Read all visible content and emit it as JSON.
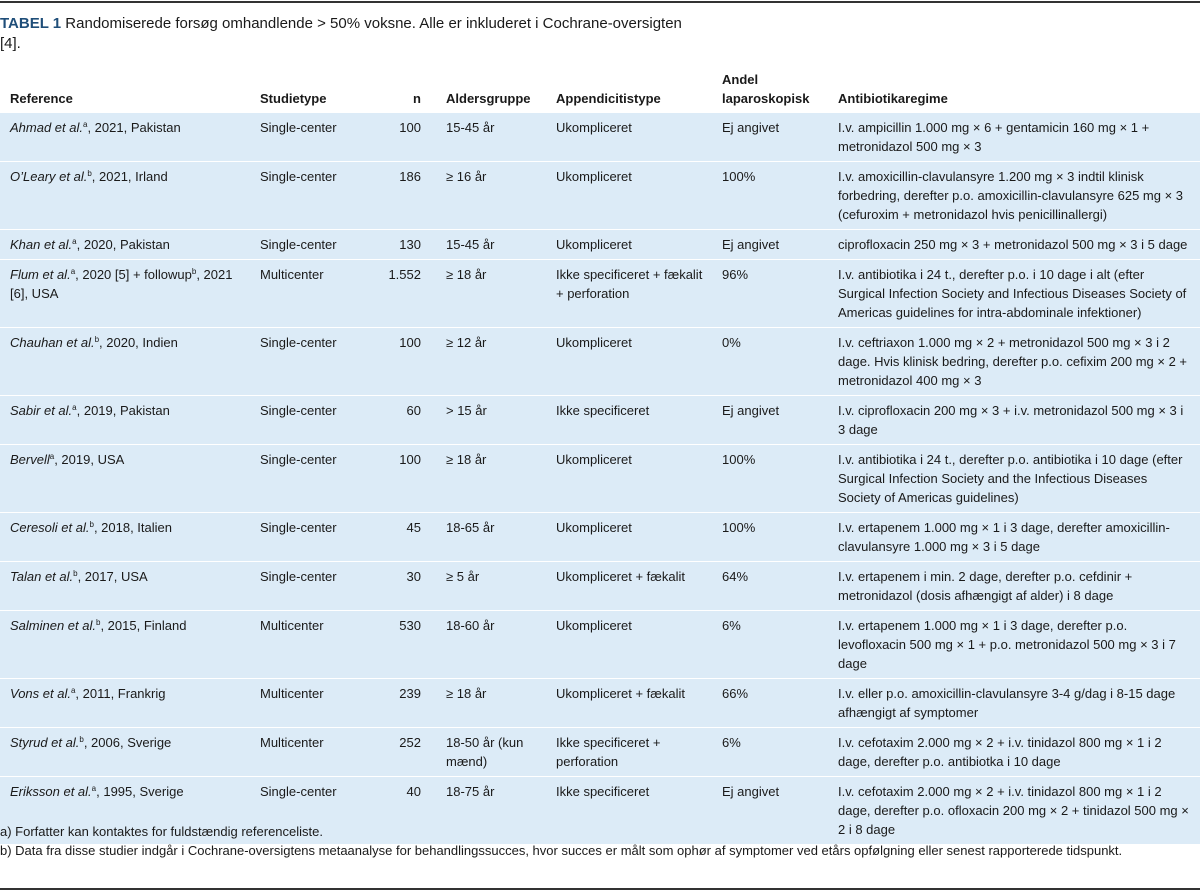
{
  "caption": {
    "label": "TABEL 1",
    "text": "Randomiserede forsøg omhandlende > 50% voksne. Alle er inkluderet i Cochrane-oversigten [4]."
  },
  "table": {
    "headers": [
      "Reference",
      "Studietype",
      "n",
      "Aldersgruppe",
      "Appendicitistype",
      "Andel laparoskopisk",
      "Antibiotikaregime"
    ],
    "rows": [
      [
        [
          {
            "text": "Ahmad et al.",
            "style": "italic"
          },
          {
            "text": "a",
            "style": "sup"
          },
          {
            "text": ", 2021, Pakistan",
            "style": "normal"
          }
        ],
        "Single-center",
        "100",
        "15-45 år",
        "Ukompliceret",
        "Ej angivet",
        "I.v. ampicillin 1.000 mg × 6 + gentamicin 160 mg × 1 + metronidazol 500 mg × 3"
      ],
      [
        [
          {
            "text": "O’Leary et al.",
            "style": "italic"
          },
          {
            "text": "b",
            "style": "sup"
          },
          {
            "text": ", 2021, Irland",
            "style": "normal"
          }
        ],
        "Single-center",
        "186",
        "≥ 16 år",
        "Ukompliceret",
        "100%",
        "I.v. amoxicillin-clavulansyre 1.200 mg × 3 indtil klinisk forbedring, derefter p.o. amoxicillin-clavulansyre 625 mg × 3 (cefuroxim + metronidazol hvis penicillinallergi)"
      ],
      [
        [
          {
            "text": "Khan et al.",
            "style": "italic"
          },
          {
            "text": "a",
            "style": "sup"
          },
          {
            "text": ", 2020, Pakistan",
            "style": "normal"
          }
        ],
        "Single-center",
        "130",
        "15-45 år",
        "Ukompliceret",
        "Ej angivet",
        "ciprofloxacin 250 mg × 3 + metronidazol 500 mg × 3 i 5 dage"
      ],
      [
        [
          {
            "text": "Flum et al.",
            "style": "italic"
          },
          {
            "text": "a",
            "style": "sup"
          },
          {
            "text": ", 2020 [5] + followup",
            "style": "normal"
          },
          {
            "text": "b",
            "style": "sup"
          },
          {
            "text": ", 2021 [6], USA",
            "style": "normal"
          }
        ],
        "Multicenter",
        "1.552",
        "≥ 18 år",
        "Ikke specificeret + fækalit + perforation",
        "96%",
        "I.v. antibiotika i 24 t., derefter p.o. i 10 dage i alt (efter Surgical Infection Society and Infectious Diseases Society of Americas guidelines for intra-abdominale infektioner)"
      ],
      [
        [
          {
            "text": "Chauhan et al.",
            "style": "italic"
          },
          {
            "text": "b",
            "style": "sup"
          },
          {
            "text": ", 2020, Indien",
            "style": "normal"
          }
        ],
        "Single-center",
        "100",
        "≥ 12 år",
        "Ukompliceret",
        "0%",
        "I.v. ceftriaxon 1.000 mg × 2 + metronidazol 500 mg × 3 i 2 dage. Hvis klinisk bedring, derefter p.o. cefixim 200 mg × 2 + metronidazol 400 mg × 3"
      ],
      [
        [
          {
            "text": "Sabir et al.",
            "style": "italic"
          },
          {
            "text": "a",
            "style": "sup"
          },
          {
            "text": ", 2019, Pakistan",
            "style": "normal"
          }
        ],
        "Single-center",
        "60",
        "> 15 år",
        "Ikke specificeret",
        "Ej angivet",
        "I.v. ciprofloxacin 200 mg × 3 + i.v. metronidazol 500 mg × 3 i 3 dage"
      ],
      [
        [
          {
            "text": "Bervell",
            "style": "italic"
          },
          {
            "text": "a",
            "style": "sup"
          },
          {
            "text": ", 2019, USA",
            "style": "normal"
          }
        ],
        "Single-center",
        "100",
        "≥ 18 år",
        "Ukompliceret",
        "100%",
        "I.v. antibiotika i 24 t., derefter p.o. antibiotika i 10 dage (efter Surgical Infection Society and the Infectious Diseases Society of Americas guidelines)"
      ],
      [
        [
          {
            "text": "Ceresoli et al.",
            "style": "italic"
          },
          {
            "text": "b",
            "style": "sup"
          },
          {
            "text": ", 2018, Italien",
            "style": "normal"
          }
        ],
        "Single-center",
        "45",
        "18-65 år",
        "Ukompliceret",
        "100%",
        "I.v. ertapenem 1.000 mg × 1 i 3 dage, derefter amoxicillin-clavulansyre 1.000 mg × 3 i 5 dage"
      ],
      [
        [
          {
            "text": "Talan et al.",
            "style": "italic"
          },
          {
            "text": "b",
            "style": "sup"
          },
          {
            "text": ", 2017, USA",
            "style": "normal"
          }
        ],
        "Single-center",
        "30",
        "≥ 5 år",
        "Ukompliceret + fækalit",
        "64%",
        "I.v. ertapenem i min. 2 dage, derefter p.o. cefdinir + metronidazol (dosis afhængigt af alder) i 8 dage"
      ],
      [
        [
          {
            "text": "Salminen et al.",
            "style": "italic"
          },
          {
            "text": "b",
            "style": "sup"
          },
          {
            "text": ", 2015, Finland",
            "style": "normal"
          }
        ],
        "Multicenter",
        "530",
        "18-60 år",
        "Ukompliceret",
        "6%",
        "I.v. ertapenem 1.000 mg × 1 i 3 dage, derefter p.o. levofloxacin 500 mg × 1 + p.o. metronidazol 500 mg × 3 i 7 dage"
      ],
      [
        [
          {
            "text": "Vons et al.",
            "style": "italic"
          },
          {
            "text": "a",
            "style": "sup"
          },
          {
            "text": ", 2011, Frankrig",
            "style": "normal"
          }
        ],
        "Multicenter",
        "239",
        "≥ 18 år",
        "Ukompliceret + fækalit",
        "66%",
        "I.v. eller p.o. amoxicillin-clavulansyre 3-4 g/dag i 8-15 dage afhængigt af symptomer"
      ],
      [
        [
          {
            "text": "Styrud et al.",
            "style": "italic"
          },
          {
            "text": "b",
            "style": "sup"
          },
          {
            "text": ", 2006, Sverige",
            "style": "normal"
          }
        ],
        "Multicenter",
        "252",
        "18-50 år (kun mænd)",
        "Ikke specificeret + perforation",
        "6%",
        "I.v. cefotaxim 2.000 mg × 2 + i.v. tinidazol 800 mg × 1 i 2 dage, derefter p.o. antibiotka i 10 dage"
      ],
      [
        [
          {
            "text": "Eriksson et al.",
            "style": "italic"
          },
          {
            "text": "a",
            "style": "sup"
          },
          {
            "text": ", 1995, Sverige",
            "style": "normal"
          }
        ],
        "Single-center",
        "40",
        "18-75 år",
        "Ikke specificeret",
        "Ej angivet",
        "I.v. cefotaxim 2.000 mg × 2 + i.v. tinidazol 800 mg × 1 i 2 dage, derefter p.o. ofloxacin 200 mg × 2 + tinidazol 500 mg × 2 i 8 dage"
      ]
    ]
  },
  "footnotes": [
    "a) Forfatter kan kontaktes for fuldstændig referenceliste.",
    "b) Data fra disse studier indgår i Cochrane-oversigtens metaanalyse for behandlingssucces, hvor succes er målt som ophør af symptomer ved etårs opfølgning eller senest rapporterede tidspunkt."
  ]
}
